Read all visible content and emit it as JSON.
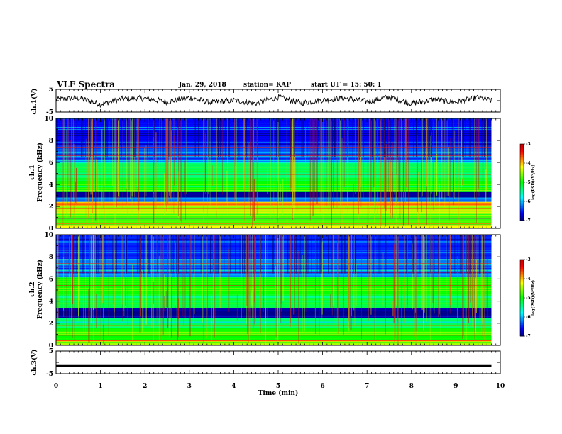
{
  "header": {
    "title": "VLF Spectra",
    "date": "Jan. 29, 2018",
    "station": "station= KAP",
    "start_ut": "start  UT =  15: 50: 1"
  },
  "colors": {
    "waveform": "#000000",
    "colormap": [
      "#00007f",
      "#0000ff",
      "#0080ff",
      "#00ffff",
      "#00ff80",
      "#00ff00",
      "#80ff00",
      "#ffff00",
      "#ff8000",
      "#ff0000",
      "#c00000"
    ],
    "background": "#ffffff"
  },
  "chart_data": [
    {
      "type": "line",
      "name_label": "ch.1(V)",
      "ylabel": "ch.1(V)",
      "ylim": [
        -5,
        5
      ],
      "yticks": [
        "5",
        "-5"
      ],
      "xlim": [
        0,
        10
      ],
      "description_values": "dense noisy waveform oscillating roughly between -3 and 3 V over 0 to 9.8 min",
      "x": [
        0,
        0.5,
        1,
        1.5,
        2,
        2.5,
        3,
        3.5,
        4,
        4.5,
        5,
        5.5,
        6,
        6.5,
        7,
        7.5,
        8,
        8.5,
        9,
        9.5,
        9.8
      ],
      "values": [
        0.5,
        1.2,
        -1.5,
        0.8,
        1.0,
        -0.5,
        1.3,
        -0.8,
        0.2,
        -1.2,
        1.5,
        -1.0,
        0.3,
        1.1,
        -0.4,
        1.6,
        -1.2,
        0.5,
        -0.7,
        1.4,
        0.0
      ]
    },
    {
      "type": "heatmap",
      "ylabel": "ch.1\nFrequency (kHz)",
      "ylabel_top": "ch.1",
      "ylabel_bottom": "Frequency (kHz)",
      "ylim": [
        0,
        10
      ],
      "yticks": [
        "0",
        "2",
        "4",
        "6",
        "8",
        "10"
      ],
      "xlim": [
        0,
        10
      ],
      "colorbar": {
        "label": "log(PSD)(V²/Hz)",
        "min": -7,
        "max": -3,
        "ticks": [
          "-3",
          "-4",
          "-5",
          "-6",
          "-7"
        ]
      },
      "bands": [
        {
          "f0": 0.0,
          "f1": 0.3,
          "level": -4.2
        },
        {
          "f0": 0.3,
          "f1": 1.1,
          "level": -4.8
        },
        {
          "f0": 1.1,
          "f1": 2.1,
          "level": -4.5
        },
        {
          "f0": 2.1,
          "f1": 2.4,
          "level": -3.8
        },
        {
          "f0": 2.4,
          "f1": 2.8,
          "level": -6.2
        },
        {
          "f0": 2.8,
          "f1": 3.3,
          "level": -6.9
        },
        {
          "f0": 3.3,
          "f1": 4.6,
          "level": -5.0
        },
        {
          "f0": 4.6,
          "f1": 6.0,
          "level": -5.3
        },
        {
          "f0": 6.0,
          "f1": 7.5,
          "level": -6.3
        },
        {
          "f0": 7.5,
          "f1": 10.0,
          "level": -6.6
        }
      ]
    },
    {
      "type": "heatmap",
      "ylabel": "ch.2\nFrequency (kHz)",
      "ylabel_top": "ch.2",
      "ylabel_bottom": "Frequency (kHz)",
      "ylim": [
        0,
        10
      ],
      "yticks": [
        "0",
        "2",
        "4",
        "6",
        "8",
        "10"
      ],
      "xlim": [
        0,
        10
      ],
      "colorbar": {
        "label": "log(PSD)(V²/Hz)",
        "min": -7,
        "max": -3,
        "ticks": [
          "-3",
          "-4",
          "-5",
          "-6",
          "-7"
        ]
      },
      "bands": [
        {
          "f0": 0.0,
          "f1": 0.5,
          "level": -4.3
        },
        {
          "f0": 0.5,
          "f1": 1.6,
          "level": -5.0
        },
        {
          "f0": 1.6,
          "f1": 2.5,
          "level": -5.4
        },
        {
          "f0": 2.5,
          "f1": 3.4,
          "level": -6.9
        },
        {
          "f0": 3.4,
          "f1": 4.6,
          "level": -5.2
        },
        {
          "f0": 4.6,
          "f1": 6.2,
          "level": -5.0
        },
        {
          "f0": 6.2,
          "f1": 7.8,
          "level": -6.2
        },
        {
          "f0": 7.8,
          "f1": 10.0,
          "level": -6.5
        }
      ]
    },
    {
      "type": "line",
      "ylabel": "ch.3(V)",
      "ylim": [
        -5,
        5
      ],
      "yticks": [
        "5",
        "-5"
      ],
      "xlim": [
        0,
        10
      ],
      "x": [
        0,
        9.8
      ],
      "values": [
        -1.5,
        -1.5
      ]
    }
  ],
  "xaxis": {
    "label": "Time (min)",
    "ticks": [
      "0",
      "1",
      "2",
      "3",
      "4",
      "5",
      "6",
      "7",
      "8",
      "9",
      "10"
    ]
  }
}
